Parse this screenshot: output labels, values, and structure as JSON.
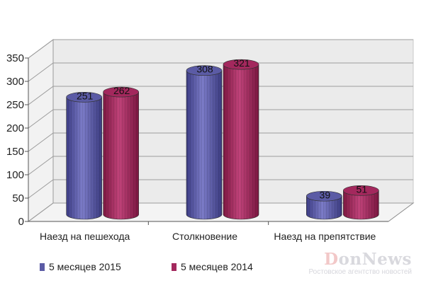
{
  "chart_data": {
    "type": "bar",
    "title": "",
    "xlabel": "",
    "ylabel": "",
    "categories": [
      "Наезд на пешехода",
      "Столкновение",
      "Наезд на препятствие"
    ],
    "series": [
      {
        "name": "5 месяцев 2015",
        "values": [
          251,
          308,
          39
        ],
        "color": "#5b5ba5"
      },
      {
        "name": "5 месяцев 2014",
        "values": [
          262,
          321,
          51
        ],
        "color": "#a3285d"
      }
    ],
    "ylim": [
      0,
      350
    ],
    "yticks": [
      0,
      50,
      100,
      150,
      200,
      250,
      300,
      350
    ],
    "grid": true,
    "legend_position": "bottom-left"
  },
  "watermark": {
    "name": "DonNews",
    "name_accent": "D",
    "name_rest": "onNews",
    "subtitle": "Ростовское агентство новостей"
  }
}
